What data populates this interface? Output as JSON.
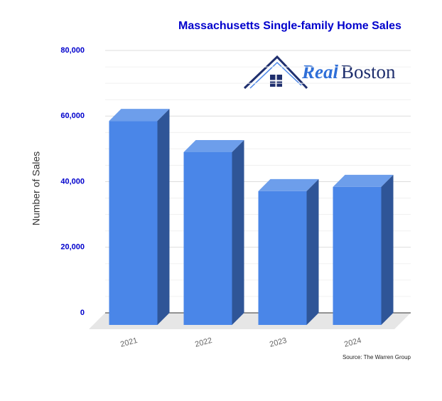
{
  "chart_data": {
    "type": "bar3d",
    "title": "Massachusetts Single-family Home Sales",
    "y_label": "Number of Sales",
    "categories": [
      "2021",
      "2022",
      "2023",
      "2024"
    ],
    "values": [
      58500,
      49000,
      37100,
      38400
    ],
    "color": "#4a86e8",
    "ylim": [
      0,
      80000
    ],
    "yticks": [
      0,
      {
        "value": 20000,
        "label": "20,000"
      },
      {
        "value": 40000,
        "label": "40,000"
      },
      {
        "value": 60000,
        "label": "60,000"
      },
      {
        "value": 80000,
        "label": "80,000"
      }
    ],
    "grid": true,
    "logo": {
      "part1": "Real",
      "part2": "Boston"
    },
    "source": "Source: The Warren Group"
  }
}
